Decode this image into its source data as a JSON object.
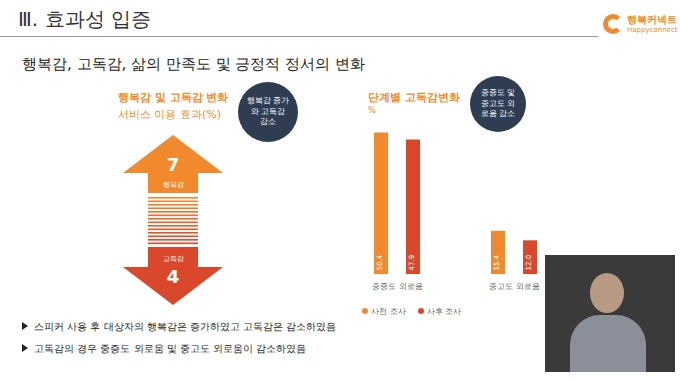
{
  "header": {
    "section": "Ⅲ. 효과성 입증",
    "logo": "행복커넥트",
    "logo_sub": "Happyconnect"
  },
  "subtitle": "행복감, 고독감, 삶의 만족도 및 긍정적 정서의 변화",
  "left_panel": {
    "title": "행복감 및 고독감 변화",
    "subtitle": "서비스 이용 효과(%)",
    "badge": "행복감 증가와 고독감 감소",
    "items": [
      {
        "label": "행복감",
        "value": 7
      },
      {
        "label": "고독감",
        "value": 4
      }
    ]
  },
  "chart_data": {
    "type": "bar",
    "title": "단계별 고독감변화",
    "y_label": "%",
    "annotation": "중증도 및 중고도 외로움 감소",
    "categories": [
      "중증도 외로움",
      "중고도 외로움"
    ],
    "series": [
      {
        "name": "사전 조사",
        "color": "#f08a2c",
        "values": [
          50.4,
          15.4
        ],
        "value_labels": [
          "50.4",
          "15.4"
        ]
      },
      {
        "name": "사후 조사",
        "color": "#d9482b",
        "values": [
          47.9,
          12.0
        ],
        "value_labels": [
          "47.9",
          "12.0"
        ]
      }
    ],
    "ylim": [
      0,
      52
    ],
    "data_labels": true,
    "tick_labels": "x",
    "legend": "bottom"
  },
  "bullets": [
    "스피커 사용 후 대상자의 행복감은 증가하였고 고독감은 감소하였음",
    "고독감의 경우 중증도 외로움 및 중고도 외로움이 감소하였음"
  ]
}
